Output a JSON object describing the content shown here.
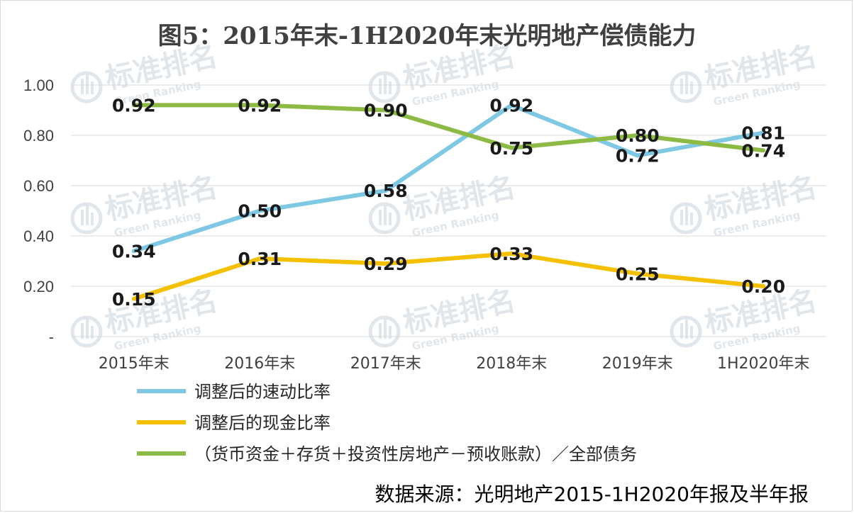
{
  "chart_data": {
    "type": "line",
    "title": "图5：2015年末-1H2020年末光明地产偿债能力",
    "categories": [
      "2015年末",
      "2016年末",
      "2017年末",
      "2018年末",
      "2019年末",
      "1H2020年末"
    ],
    "ylim": [
      0,
      1.0
    ],
    "yticks": [
      "-",
      "0.20",
      "0.40",
      "0.60",
      "0.80",
      "1.00"
    ],
    "ytick_values": [
      0,
      0.2,
      0.4,
      0.6,
      0.8,
      1.0
    ],
    "grid": true,
    "legend_position": "bottom",
    "series": [
      {
        "name": "调整后的速动比率",
        "color": "#7ec8e3",
        "values": [
          0.34,
          0.5,
          0.58,
          0.92,
          0.72,
          0.81
        ],
        "labels": [
          "0.34",
          "0.50",
          "0.58",
          "0.92",
          "0.72",
          "0.81"
        ]
      },
      {
        "name": "调整后的现金比率",
        "color": "#f5c000",
        "values": [
          0.15,
          0.31,
          0.29,
          0.33,
          0.25,
          0.2
        ],
        "labels": [
          "0.15",
          "0.31",
          "0.29",
          "0.33",
          "0.25",
          "0.20"
        ]
      },
      {
        "name": "（货币资金＋存货＋投资性房地产－预收账款）／全部债务",
        "color": "#8dba45",
        "values": [
          0.92,
          0.92,
          0.9,
          0.75,
          0.8,
          0.74
        ],
        "labels": [
          "0.92",
          "0.92",
          "0.90",
          "0.75",
          "0.80",
          "0.74"
        ]
      }
    ]
  },
  "source_note": "数据来源：光明地产2015-1H2020年报及半年报",
  "watermark": {
    "text": "标准排名",
    "subtext": "Green Ranking",
    "icon": "logo-icon"
  }
}
